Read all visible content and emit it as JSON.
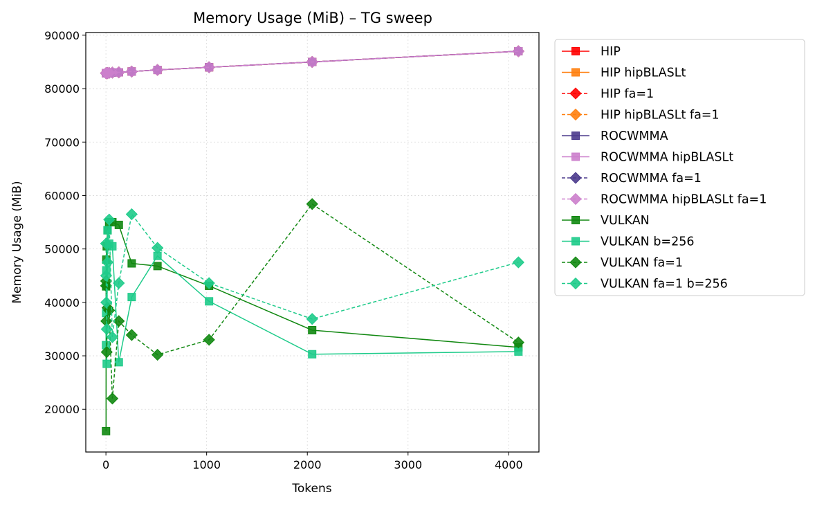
{
  "chart_data": {
    "type": "line",
    "title": "Memory Usage (MiB) – TG sweep",
    "xlabel": "Tokens",
    "ylabel": "Memory Usage (MiB)",
    "xlim": [
      -200,
      4300
    ],
    "ylim": [
      12000,
      90500
    ],
    "xticks": [
      0,
      1000,
      2000,
      3000,
      4000
    ],
    "xtick_labels": [
      "0",
      "1000",
      "2000",
      "3000",
      "4000"
    ],
    "yticks": [
      20000,
      30000,
      40000,
      50000,
      60000,
      70000,
      80000,
      90000
    ],
    "ytick_labels": [
      "20000",
      "30000",
      "40000",
      "50000",
      "60000",
      "70000",
      "80000",
      "90000"
    ],
    "grid": true,
    "legend_position": "outside-right",
    "series": [
      {
        "name": "HIP",
        "color": "#ff0000",
        "marker": "square",
        "dash": "solid",
        "x": [
          1,
          2,
          4,
          8,
          16,
          32,
          64,
          128,
          256,
          512,
          1024,
          2048,
          4096
        ],
        "y": [
          82900,
          82900,
          82900,
          82900,
          82900,
          82950,
          83000,
          83050,
          83200,
          83500,
          84000,
          85000,
          87000
        ]
      },
      {
        "name": "HIP hipBLASLt",
        "color": "#ff7f0e",
        "marker": "square",
        "dash": "solid",
        "x": [
          1,
          2,
          4,
          8,
          16,
          32,
          64,
          128,
          256,
          512,
          1024,
          2048,
          4096
        ],
        "y": [
          82900,
          82900,
          82900,
          82900,
          82900,
          82950,
          83000,
          83050,
          83200,
          83500,
          84000,
          85000,
          87000
        ]
      },
      {
        "name": "HIP fa=1",
        "color": "#ff0000",
        "marker": "diamond",
        "dash": "dashed",
        "x": [
          1,
          2,
          4,
          8,
          16,
          32,
          64,
          128,
          256,
          512,
          1024,
          2048,
          4096
        ],
        "y": [
          82900,
          82900,
          82900,
          82900,
          82900,
          82950,
          83000,
          83050,
          83200,
          83500,
          84000,
          85000,
          87000
        ]
      },
      {
        "name": "HIP hipBLASLt fa=1",
        "color": "#ff7f0e",
        "marker": "diamond",
        "dash": "dashed",
        "x": [
          1,
          2,
          4,
          8,
          16,
          32,
          64,
          128,
          256,
          512,
          1024,
          2048,
          4096
        ],
        "y": [
          82900,
          82900,
          82900,
          82900,
          82900,
          82950,
          83000,
          83050,
          83200,
          83500,
          84000,
          85000,
          87000
        ]
      },
      {
        "name": "ROCWMMA",
        "color": "#4b3a8c",
        "marker": "square",
        "dash": "solid",
        "x": [
          1,
          2,
          4,
          8,
          16,
          32,
          64,
          128,
          256,
          512,
          1024,
          2048,
          4096
        ],
        "y": [
          82900,
          82900,
          82900,
          82900,
          82900,
          82950,
          83000,
          83050,
          83200,
          83500,
          84000,
          85000,
          87000
        ]
      },
      {
        "name": "ROCWMMA hipBLASLt",
        "color": "#cc7fcc",
        "marker": "square",
        "dash": "solid",
        "x": [
          1,
          2,
          4,
          8,
          16,
          32,
          64,
          128,
          256,
          512,
          1024,
          2048,
          4096
        ],
        "y": [
          82900,
          82900,
          82900,
          82900,
          82900,
          82950,
          83000,
          83050,
          83200,
          83500,
          84000,
          85000,
          87000
        ]
      },
      {
        "name": "ROCWMMA fa=1",
        "color": "#4b3a8c",
        "marker": "diamond",
        "dash": "dashed",
        "x": [
          1,
          2,
          4,
          8,
          16,
          32,
          64,
          128,
          256,
          512,
          1024,
          2048,
          4096
        ],
        "y": [
          82900,
          82900,
          82900,
          82900,
          82900,
          82950,
          83000,
          83050,
          83200,
          83500,
          84000,
          85000,
          87000
        ]
      },
      {
        "name": "ROCWMMA hipBLASLt fa=1",
        "color": "#cc7fcc",
        "marker": "diamond",
        "dash": "dashed",
        "x": [
          1,
          2,
          4,
          8,
          16,
          32,
          64,
          128,
          256,
          512,
          1024,
          2048,
          4096
        ],
        "y": [
          82900,
          82900,
          82900,
          82900,
          82900,
          82950,
          83000,
          83050,
          83200,
          83500,
          84000,
          85000,
          87000
        ]
      },
      {
        "name": "VULKAN",
        "color": "#118811",
        "marker": "square",
        "dash": "solid",
        "x": [
          1,
          2,
          4,
          8,
          16,
          32,
          64,
          128,
          256,
          512,
          1024,
          2048,
          4096
        ],
        "y": [
          15900,
          43000,
          48000,
          50500,
          53500,
          55000,
          55000,
          54500,
          47300,
          46800,
          43100,
          34800,
          31600
        ]
      },
      {
        "name": "VULKAN b=256",
        "color": "#1ecb8a",
        "marker": "square",
        "dash": "solid",
        "x": [
          1,
          2,
          4,
          8,
          16,
          32,
          64,
          128,
          256,
          512,
          1024,
          2048,
          4096
        ],
        "y": [
          32000,
          38000,
          46000,
          28500,
          53500,
          51000,
          50500,
          28800,
          41000,
          48700,
          40200,
          30300,
          30800
        ]
      },
      {
        "name": "VULKAN fa=1",
        "color": "#118811",
        "marker": "diamond",
        "dash": "dashed",
        "x": [
          1,
          2,
          4,
          8,
          16,
          32,
          64,
          128,
          256,
          512,
          1024,
          2048,
          4096
        ],
        "y": [
          43100,
          44000,
          36500,
          30700,
          39000,
          38500,
          22000,
          36500,
          33900,
          30200,
          33000,
          58400,
          32500
        ]
      },
      {
        "name": "VULKAN fa=1 b=256",
        "color": "#1ecb8a",
        "marker": "diamond",
        "dash": "dashed",
        "x": [
          1,
          2,
          4,
          8,
          16,
          32,
          64,
          128,
          256,
          512,
          1024,
          2048,
          4096
        ],
        "y": [
          51000,
          45000,
          40000,
          35000,
          47500,
          55500,
          33500,
          43600,
          56500,
          50200,
          43600,
          36900,
          47500
        ]
      }
    ]
  }
}
